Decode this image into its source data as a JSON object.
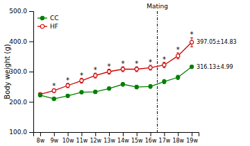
{
  "chart_data": {
    "type": "line",
    "categories": [
      "8w",
      "9w",
      "10w",
      "11w",
      "12w",
      "13w",
      "14w",
      "15w",
      "16w",
      "17w",
      "18w",
      "19w"
    ],
    "series": [
      {
        "name": "CC",
        "color": "#008000",
        "marker": "circle",
        "values": [
          222,
          210,
          220,
          232,
          233,
          244,
          258,
          249,
          251,
          267,
          281,
          316
        ],
        "errors": [
          4,
          5,
          5,
          5,
          5,
          5,
          6,
          6,
          6,
          7,
          7,
          5
        ]
      },
      {
        "name": "HF",
        "color": "#cc0000",
        "marker": "circle-open",
        "values": [
          225,
          237,
          254,
          270,
          287,
          300,
          308,
          308,
          313,
          322,
          352,
          397
        ],
        "errors": [
          5,
          6,
          7,
          8,
          8,
          8,
          8,
          8,
          8,
          9,
          10,
          15
        ]
      }
    ],
    "y_label": "Body weight (g)",
    "ylim": [
      100.0,
      500.0
    ],
    "yticks": [
      {
        "value": 100.0,
        "label": "100.0"
      },
      {
        "value": 200.0,
        "label": "200.0"
      },
      {
        "value": 300.0,
        "label": "300.0"
      },
      {
        "value": 400.0,
        "label": "400.0"
      },
      {
        "value": 500.0,
        "label": "500.0"
      }
    ],
    "annotations": [
      {
        "text": "*",
        "x": "9w",
        "series": "HF"
      },
      {
        "text": "*",
        "x": "10w",
        "series": "HF"
      },
      {
        "text": "*",
        "x": "11w",
        "series": "HF"
      },
      {
        "text": "*",
        "x": "12w",
        "series": "HF"
      },
      {
        "text": "*",
        "x": "13w",
        "series": "HF"
      },
      {
        "text": "*",
        "x": "14w",
        "series": "HF"
      },
      {
        "text": "*",
        "x": "15w",
        "series": "HF"
      },
      {
        "text": "*",
        "x": "16w",
        "series": "HF"
      },
      {
        "text": "*",
        "x": "17w",
        "series": "HF"
      },
      {
        "text": "*",
        "x": "18w",
        "series": "HF"
      },
      {
        "text": "*",
        "x": "19w",
        "series": "HF"
      },
      {
        "text": "Mating",
        "between": [
          "16w",
          "17w"
        ],
        "line_style": "dashdot"
      },
      {
        "text": "397.05±14.83",
        "x": "19w",
        "series": "HF",
        "end_label": true
      },
      {
        "text": "316.13±4.99",
        "x": "19w",
        "series": "CC",
        "end_label": true
      }
    ],
    "grid": false,
    "legend": "upper left"
  }
}
